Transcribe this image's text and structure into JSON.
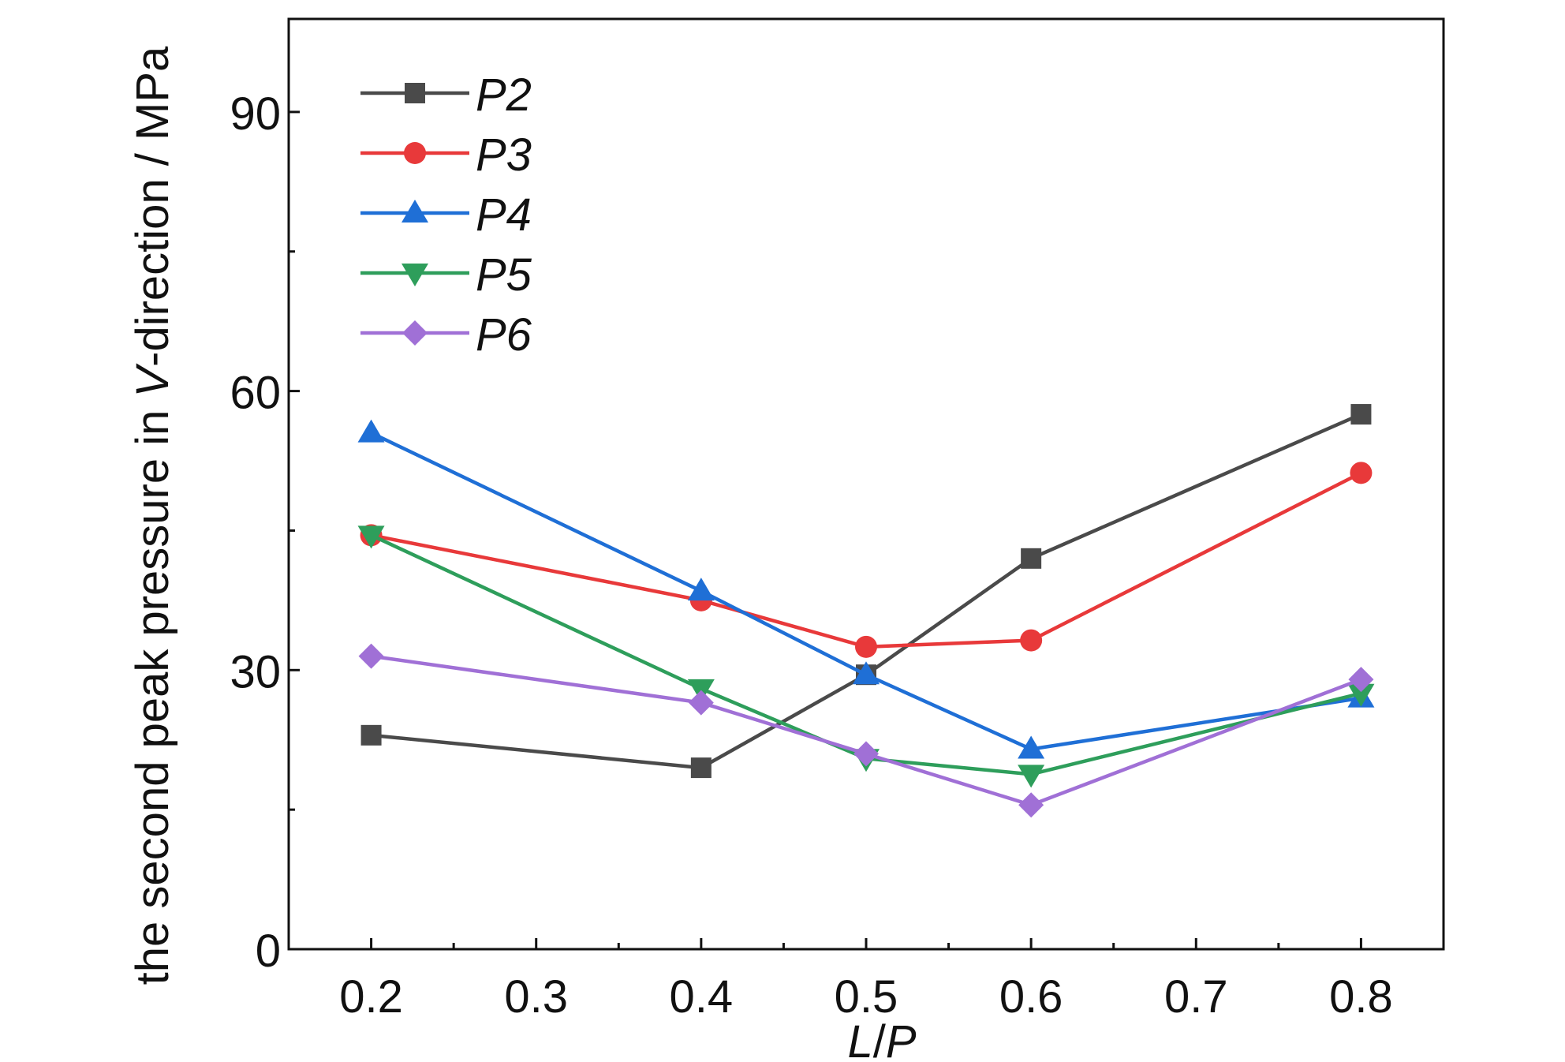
{
  "chart_data": {
    "type": "line",
    "title": "",
    "xlabel": "L/P",
    "xlabel_parts": [
      "L",
      "/",
      "P"
    ],
    "ylabel": "the second peak pressure in V-direction / MPa",
    "ylabel_parts": [
      "the second peak pressure in ",
      "V",
      "-direction / MPa"
    ],
    "xlim": [
      0.15,
      0.85
    ],
    "ylim": [
      0,
      100
    ],
    "x_ticks": [
      0.2,
      0.3,
      0.4,
      0.5,
      0.6,
      0.7,
      0.8
    ],
    "x_tick_labels": [
      "0.2",
      "0.3",
      "0.4",
      "0.5",
      "0.6",
      "0.7",
      "0.8"
    ],
    "y_ticks": [
      0,
      30,
      60,
      90
    ],
    "y_tick_labels": [
      "0",
      "30",
      "60",
      "90"
    ],
    "legend_position": "top-left",
    "grid": false,
    "x": [
      0.2,
      0.4,
      0.5,
      0.6,
      0.8
    ],
    "series": [
      {
        "name": "P2",
        "color": "#4a4a4a",
        "marker": "square",
        "values": [
          23.0,
          19.5,
          29.5,
          42.0,
          57.5
        ]
      },
      {
        "name": "P3",
        "color": "#e8393a",
        "marker": "circle",
        "values": [
          44.5,
          37.5,
          32.5,
          33.2,
          51.2
        ]
      },
      {
        "name": "P4",
        "color": "#1f6fd6",
        "marker": "triangle-up",
        "values": [
          55.5,
          38.5,
          29.5,
          21.5,
          27.0
        ]
      },
      {
        "name": "P5",
        "color": "#2e9e5b",
        "marker": "triangle-down",
        "values": [
          44.5,
          28.0,
          20.5,
          18.8,
          27.5
        ]
      },
      {
        "name": "P6",
        "color": "#a070d6",
        "marker": "diamond",
        "values": [
          31.5,
          26.5,
          21.0,
          15.5,
          29.0
        ]
      }
    ]
  }
}
